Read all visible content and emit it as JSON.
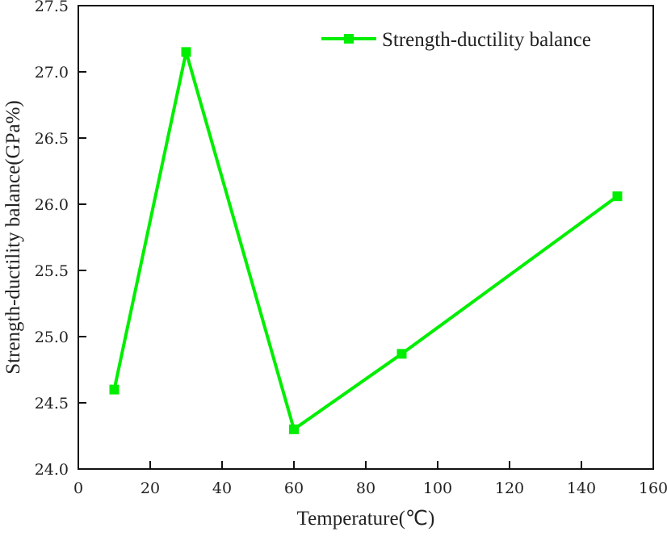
{
  "chart_data": {
    "type": "line",
    "title": "",
    "xlabel": "Temperature(℃)",
    "ylabel": "Strength-ductility balance(GPa%)",
    "xlim": [
      0,
      160
    ],
    "ylim": [
      24.0,
      27.5
    ],
    "xticks": [
      "0",
      "20",
      "40",
      "60",
      "80",
      "100",
      "120",
      "140",
      "160"
    ],
    "yticks": [
      "24.0",
      "24.5",
      "25.0",
      "25.5",
      "26.0",
      "26.5",
      "27.0",
      "27.5"
    ],
    "grid": false,
    "legend_position": "top-right",
    "series": [
      {
        "name": "Strength-ductility balance",
        "color": "#00ee00",
        "marker": "square",
        "x": [
          10,
          30,
          60,
          90,
          150
        ],
        "y": [
          24.6,
          27.15,
          24.3,
          24.87,
          26.06
        ]
      }
    ]
  }
}
